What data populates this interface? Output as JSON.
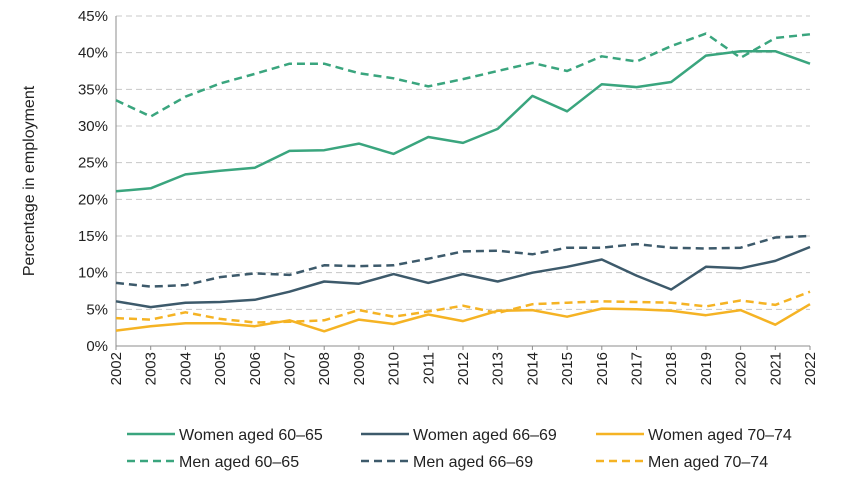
{
  "chart_data": {
    "type": "line",
    "title": "",
    "xlabel": "",
    "ylabel": "Percentage in employment",
    "ylim": [
      0,
      45
    ],
    "yticks": [
      0,
      5,
      10,
      15,
      20,
      25,
      30,
      35,
      40,
      45
    ],
    "ytick_labels": [
      "0%",
      "5%",
      "10%",
      "15%",
      "20%",
      "25%",
      "30%",
      "35%",
      "40%",
      "45%"
    ],
    "grid": "horizontal dashed",
    "legend_position": "bottom",
    "categories": [
      "2002",
      "2003",
      "2004",
      "2005",
      "2006",
      "2007",
      "2008",
      "2009",
      "2010",
      "2011",
      "2012",
      "2013",
      "2014",
      "2015",
      "2016",
      "2017",
      "2018",
      "2019",
      "2020",
      "2021",
      "2022"
    ],
    "series": [
      {
        "name": "Women aged 60–65",
        "color": "#3aa57e",
        "style": "solid",
        "values": [
          21.1,
          21.5,
          23.4,
          23.9,
          24.3,
          26.6,
          26.7,
          27.6,
          26.2,
          28.5,
          27.7,
          29.6,
          34.1,
          32.0,
          35.7,
          35.3,
          36.0,
          39.6,
          40.2,
          40.2,
          38.5
        ]
      },
      {
        "name": "Women aged 66–69",
        "color": "#3d5a6b",
        "style": "solid",
        "values": [
          6.1,
          5.3,
          5.9,
          6.0,
          6.3,
          7.4,
          8.8,
          8.5,
          9.8,
          8.6,
          9.8,
          8.8,
          10.0,
          10.8,
          11.8,
          9.6,
          7.7,
          10.8,
          10.6,
          11.6,
          13.5
        ]
      },
      {
        "name": "Women aged 70–74",
        "color": "#f5b324",
        "style": "solid",
        "values": [
          2.1,
          2.7,
          3.1,
          3.1,
          2.7,
          3.5,
          2.0,
          3.6,
          3.0,
          4.3,
          3.4,
          4.8,
          4.9,
          4.0,
          5.1,
          5.0,
          4.8,
          4.2,
          4.9,
          2.9,
          5.7
        ]
      },
      {
        "name": "Men aged 60–65",
        "color": "#3aa57e",
        "style": "dashed",
        "values": [
          33.5,
          31.3,
          34.0,
          35.8,
          37.1,
          38.5,
          38.5,
          37.2,
          36.5,
          35.4,
          36.4,
          37.5,
          38.6,
          37.5,
          39.5,
          38.8,
          40.9,
          42.6,
          39.3,
          42.0,
          42.5
        ]
      },
      {
        "name": "Men aged 66–69",
        "color": "#3d5a6b",
        "style": "dashed",
        "values": [
          8.6,
          8.1,
          8.3,
          9.4,
          9.9,
          9.7,
          11.0,
          10.9,
          11.0,
          11.9,
          12.9,
          13.0,
          12.5,
          13.4,
          13.4,
          13.9,
          13.4,
          13.3,
          13.4,
          14.8,
          15.0
        ]
      },
      {
        "name": "Men aged 70–74",
        "color": "#f5b324",
        "style": "dashed",
        "values": [
          3.8,
          3.6,
          4.6,
          3.7,
          3.2,
          3.3,
          3.5,
          4.9,
          4.0,
          4.7,
          5.5,
          4.5,
          5.7,
          5.9,
          6.1,
          6.0,
          5.9,
          5.4,
          6.2,
          5.6,
          7.4
        ]
      }
    ]
  }
}
